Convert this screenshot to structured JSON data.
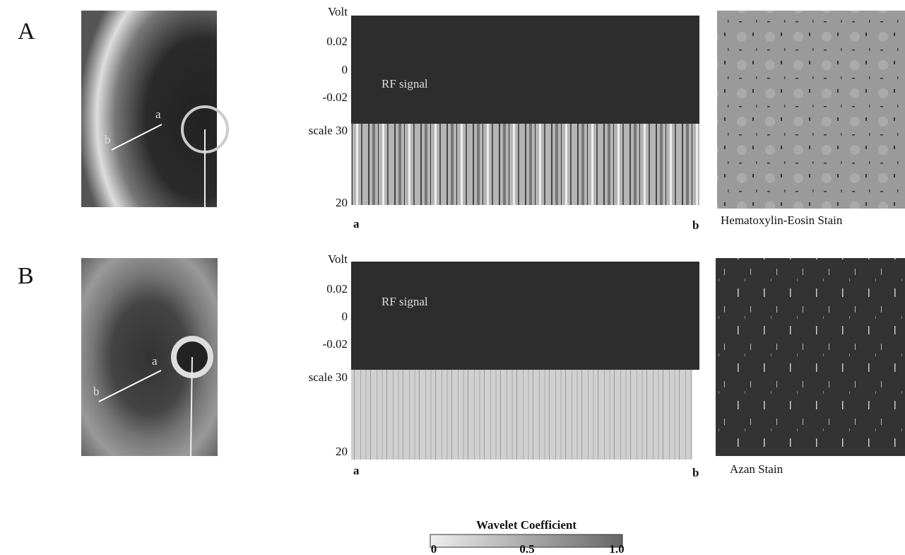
{
  "panels": [
    {
      "label": "A",
      "ivus_labels": [
        "a",
        "b"
      ],
      "signal": {
        "y_axis_title": "Volt",
        "y_ticks": [
          "0.02",
          "0",
          "-0.02"
        ],
        "trace_label": "RF signal",
        "scale_top": "scale 30",
        "scale_bottom": "20",
        "x_start": "a",
        "x_end": "b"
      },
      "stain": "Hematoxylin-Eosin Stain"
    },
    {
      "label": "B",
      "ivus_labels": [
        "a",
        "b"
      ],
      "signal": {
        "y_axis_title": "Volt",
        "y_ticks": [
          "0.02",
          "0",
          "-0.02"
        ],
        "trace_label": "RF signal",
        "scale_top": "scale 30",
        "scale_bottom": "20",
        "x_start": "a",
        "x_end": "b"
      },
      "stain": "Azan Stain"
    }
  ],
  "colorbar": {
    "title": "Wavelet Coefficient",
    "ticks": [
      "0",
      "0.5",
      "1.0"
    ]
  }
}
